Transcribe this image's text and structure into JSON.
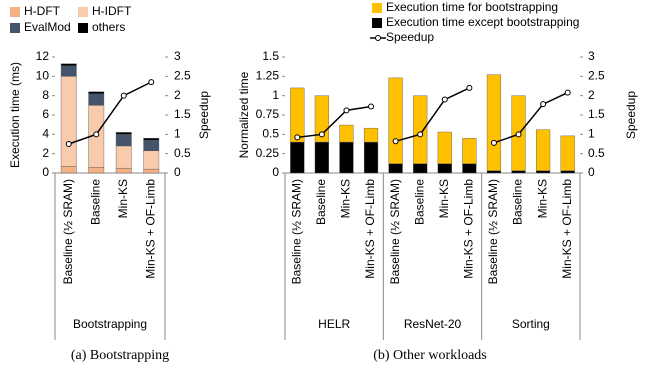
{
  "chart_data": [
    {
      "type": "bar",
      "stacked": true,
      "y_label": "Execution time (ms)",
      "y2_label": "Speedup",
      "categories": [
        "Baseline (½ SRAM)",
        "Baseline",
        "Min-KS",
        "Min-KS + OF-Limb"
      ],
      "groups": [
        "Bootstrapping"
      ],
      "series": [
        {
          "name": "H-DFT",
          "color": "#f4b183",
          "values": [
            0.7,
            0.6,
            0.5,
            0.4
          ]
        },
        {
          "name": "H-IDFT",
          "color": "#f8cbad",
          "values": [
            9.3,
            6.4,
            2.3,
            1.9
          ]
        },
        {
          "name": "EvalMod",
          "color": "#44546a",
          "values": [
            1.1,
            1.2,
            1.2,
            1.1
          ]
        },
        {
          "name": "others",
          "color": "#000000",
          "values": [
            0.2,
            0.2,
            0.2,
            0.2
          ]
        },
        {
          "type": "line",
          "axis": "y2",
          "color": "#000000",
          "values": [
            0.75,
            1.0,
            2.0,
            2.35
          ]
        }
      ],
      "ylim": [
        0,
        12
      ],
      "yticks": [
        0,
        2,
        4,
        6,
        8,
        10,
        12
      ],
      "y2lim": [
        0,
        3
      ],
      "y2ticks": [
        0,
        0.5,
        1,
        1.5,
        2,
        2.5,
        3
      ],
      "caption": "(a) Bootstrapping"
    },
    {
      "type": "bar",
      "stacked": true,
      "y_label": "Normalized time",
      "y2_label": "Speedup",
      "categories": [
        "Baseline (½ SRAM)",
        "Baseline",
        "Min-KS",
        "Min-KS + OF-Limb",
        "Baseline (½ SRAM)",
        "Baseline",
        "Min-KS",
        "Min-KS + OF-Limb",
        "Baseline (½ SRAM)",
        "Baseline",
        "Min-KS",
        "Min-KS + OF-Limb"
      ],
      "groups": [
        "HELR",
        "ResNet-20",
        "Sorting"
      ],
      "series": [
        {
          "name": "Execution time except bootstrapping",
          "color": "#000000",
          "values": [
            0.4,
            0.4,
            0.4,
            0.4,
            0.12,
            0.12,
            0.12,
            0.12,
            0.03,
            0.03,
            0.03,
            0.03
          ]
        },
        {
          "name": "Execution time for bootstrapping",
          "color": "#ffc000",
          "values": [
            0.7,
            0.6,
            0.22,
            0.18,
            1.11,
            0.88,
            0.41,
            0.33,
            1.24,
            0.97,
            0.53,
            0.45
          ]
        },
        {
          "name": "Speedup",
          "type": "line",
          "axis": "y2",
          "color": "#000000",
          "values": [
            0.92,
            1.0,
            1.62,
            1.72,
            0.82,
            1.0,
            1.9,
            2.2,
            0.78,
            1.0,
            1.78,
            2.08
          ]
        }
      ],
      "ylim": [
        0,
        1.5
      ],
      "yticks": [
        0,
        0.25,
        0.5,
        0.75,
        1,
        1.25,
        1.5
      ],
      "y2lim": [
        0,
        3
      ],
      "y2ticks": [
        0,
        0.5,
        1,
        1.5,
        2,
        2.5,
        3
      ],
      "caption": "(b) Other workloads"
    }
  ]
}
